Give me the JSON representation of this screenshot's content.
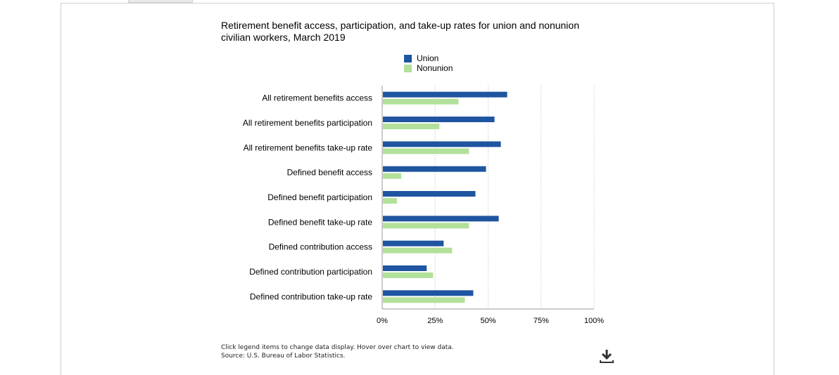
{
  "title": "Retirement benefit access, participation, and take-up rates for union and nonunion civilian workers, March 2019",
  "legend": [
    {
      "label": "Union",
      "color": "#1f55a0"
    },
    {
      "label": "Nonunion",
      "color": "#b3e09a"
    }
  ],
  "footnotes": {
    "line1": "Click legend items to change data display. Hover over chart to view data.",
    "line2": "Source: U.S. Bureau of Labor Statistics."
  },
  "icons": {
    "download": "download-icon"
  },
  "chart_data": {
    "type": "bar",
    "orientation": "horizontal",
    "title": "Retirement benefit access, participation, and take-up rates for union and nonunion civilian workers, March 2019",
    "categories": [
      "All retirement benefits access",
      "All retirement benefits participation",
      "All retirement benefits take-up rate",
      "Defined benefit access",
      "Defined benefit participation",
      "Defined benefit take-up rate",
      "Defined contribution access",
      "Defined contribution participation",
      "Defined contribution take-up rate"
    ],
    "series": [
      {
        "name": "Union",
        "color": "#1f55a0",
        "values": [
          59,
          53,
          56,
          49,
          44,
          55,
          29,
          21,
          43
        ]
      },
      {
        "name": "Nonunion",
        "color": "#b3e09a",
        "values": [
          36,
          27,
          41,
          9,
          7,
          41,
          33,
          24,
          39
        ]
      }
    ],
    "xlim": [
      0,
      100
    ],
    "xticks": [
      "0%",
      "25%",
      "50%",
      "75%",
      "100%"
    ],
    "grid": true,
    "legend_position": "top"
  }
}
